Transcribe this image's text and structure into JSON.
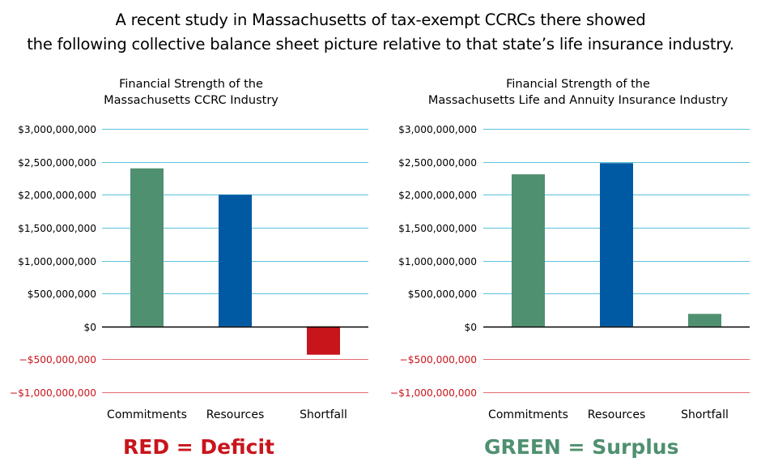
{
  "headline": {
    "line1": "A recent study in Massachusetts of tax-exempt CCRCs there showed",
    "line2": "the following collective balance sheet picture relative to that state’s life insurance industry."
  },
  "colors": {
    "commitments": "#4f9070",
    "resources": "#005aa3",
    "deficit": "#c8151c",
    "gridline_positive": "#5bc2df",
    "gridline_negative": "#e46a6f",
    "tick_negative": "#c8151c"
  },
  "chart_data": [
    {
      "type": "bar",
      "title_line1": "Financial Strength of the",
      "title_line2": "Massachusetts CCRC Industry",
      "categories": [
        "Commitments",
        "Resources",
        "Shortfall"
      ],
      "values": [
        2400000000,
        2000000000,
        -430000000
      ],
      "ylim": [
        -1000000000,
        3000000000
      ],
      "yticks": [
        3000000000,
        2500000000,
        2000000000,
        1500000000,
        1000000000,
        500000000,
        0,
        -500000000,
        -1000000000
      ],
      "ytick_labels": [
        "$3,000,000,000",
        "$2,500,000,000",
        "$2,000,000,000",
        "$1,500,000,000",
        "$1,000,000,000",
        "$500,000,000",
        "$0",
        "−$500,000,000",
        "−$1,000,000,000"
      ],
      "bar_colors": [
        "#4f9070",
        "#005aa3",
        "#c8151c"
      ],
      "grid": true
    },
    {
      "type": "bar",
      "title_line1": "Financial Strength of the",
      "title_line2": "Massachusetts Life and Annuity Insurance Industry",
      "categories": [
        "Commitments",
        "Resources",
        "Shortfall"
      ],
      "values": [
        2310000000,
        2480000000,
        190000000
      ],
      "ylim": [
        -1000000000,
        3000000000
      ],
      "yticks": [
        3000000000,
        2500000000,
        2000000000,
        1500000000,
        1000000000,
        500000000,
        0,
        -500000000,
        -1000000000
      ],
      "ytick_labels": [
        "$3,000,000,000",
        "$2,500,000,000",
        "$2,000,000,000",
        "$1,500,000,000",
        "$1,000,000,000",
        "$500,000,000",
        "$0",
        "−$500,000,000",
        "−$1,000,000,000"
      ],
      "bar_colors": [
        "#4f9070",
        "#005aa3",
        "#4f9070"
      ],
      "grid": true
    }
  ],
  "legend": {
    "red": "RED = Deficit",
    "green": "GREEN = Surplus"
  }
}
